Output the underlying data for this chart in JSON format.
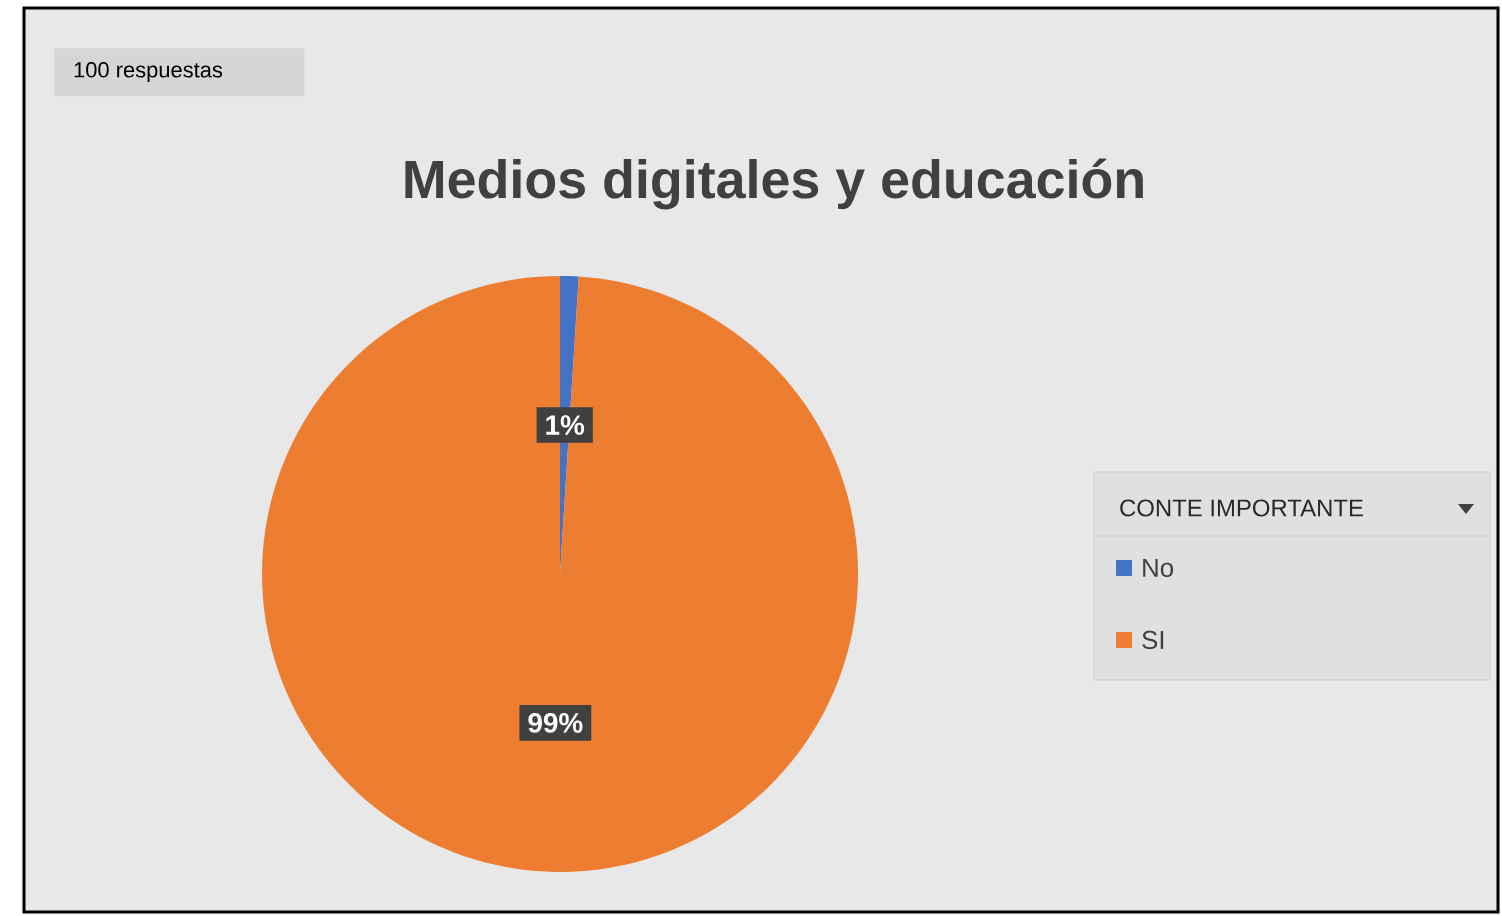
{
  "chart_data": {
    "type": "pie",
    "title": "Medios digitales y educación",
    "annotations": [
      "100 respuestas"
    ],
    "legend_title": "CONTE IMPORTANTE",
    "legend": "right",
    "categories": [
      "No",
      "SI"
    ],
    "values": [
      1,
      99
    ],
    "value_labels": [
      "1%",
      "99%"
    ],
    "colors": [
      "#4472c4",
      "#ed7d31"
    ]
  }
}
